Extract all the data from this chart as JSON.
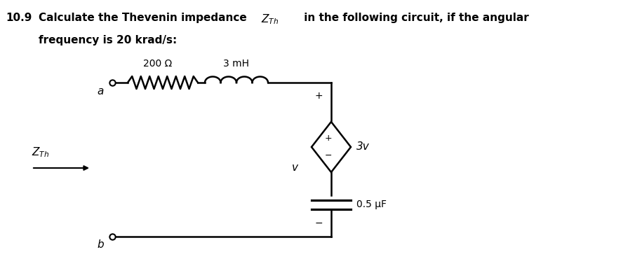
{
  "title_number": "10.9",
  "title_text": "Calculate the Thevenin impedance  Z",
  "title_sub": "Th",
  "title_rest": " in the following circuit, if the angular",
  "title_line2": "frequency is 20 krad/s:",
  "label_200ohm": "200 Ω",
  "label_3mH": "3 mH",
  "label_a": "a",
  "label_b": "b",
  "label_ZTh": "Z",
  "label_ZTh_sub": "Th",
  "label_v": "v",
  "label_3v": "3v",
  "label_cap": "0.5 μF",
  "label_plus_top": "+",
  "label_minus_bot": "−",
  "label_plus_diamond": "+",
  "label_minus_diamond": "−",
  "bg_color": "#ffffff",
  "line_color": "#000000",
  "text_color": "#000000"
}
